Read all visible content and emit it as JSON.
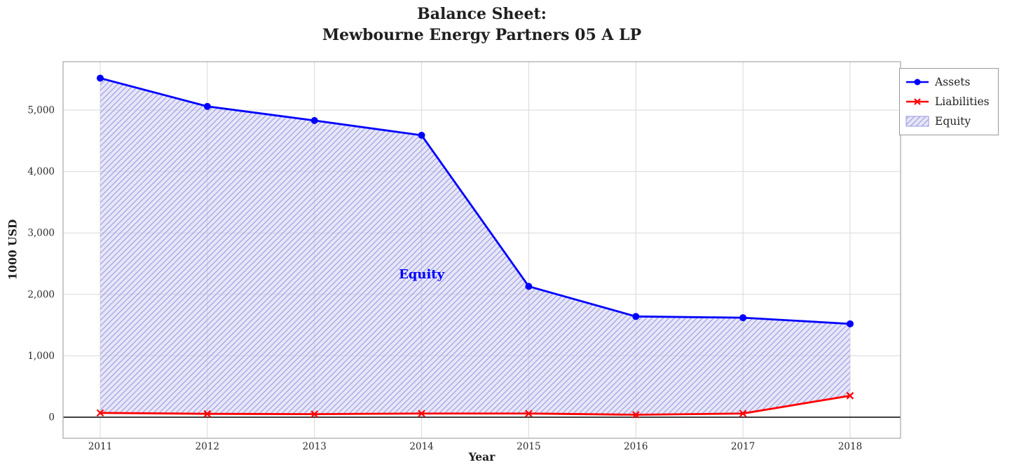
{
  "title": {
    "line1": "Balance Sheet:",
    "line2": "Mewbourne Energy Partners 05 A LP"
  },
  "chart_data": {
    "type": "line",
    "x": [
      2011,
      2012,
      2013,
      2014,
      2015,
      2016,
      2017,
      2018
    ],
    "series": [
      {
        "name": "Assets",
        "color": "#0000ff",
        "marker": "circle",
        "values": [
          5520,
          5060,
          4830,
          4590,
          2130,
          1640,
          1620,
          1520
        ]
      },
      {
        "name": "Liabilities",
        "color": "#ff0000",
        "marker": "x",
        "values": [
          70,
          55,
          50,
          60,
          60,
          40,
          60,
          350
        ]
      }
    ],
    "area": {
      "name": "Equity",
      "between": [
        "Liabilities",
        "Assets"
      ],
      "fill": "#c8c8f0",
      "hatch": "///",
      "hatch_color": "#9a9ae0"
    },
    "annotation": {
      "text": "Equity",
      "x": 2014,
      "y": 2330,
      "color": "#0000ff"
    },
    "xlabel": "Year",
    "ylabel": "1000 USD",
    "yticks": [
      0,
      1000,
      2000,
      3000,
      4000,
      5000
    ],
    "ylim": [
      -340,
      5790
    ],
    "grid": true,
    "grid_color": "#d9d9d9",
    "zero_line": true,
    "zero_line_color": "#000000",
    "legend_position": "upper right outside"
  }
}
